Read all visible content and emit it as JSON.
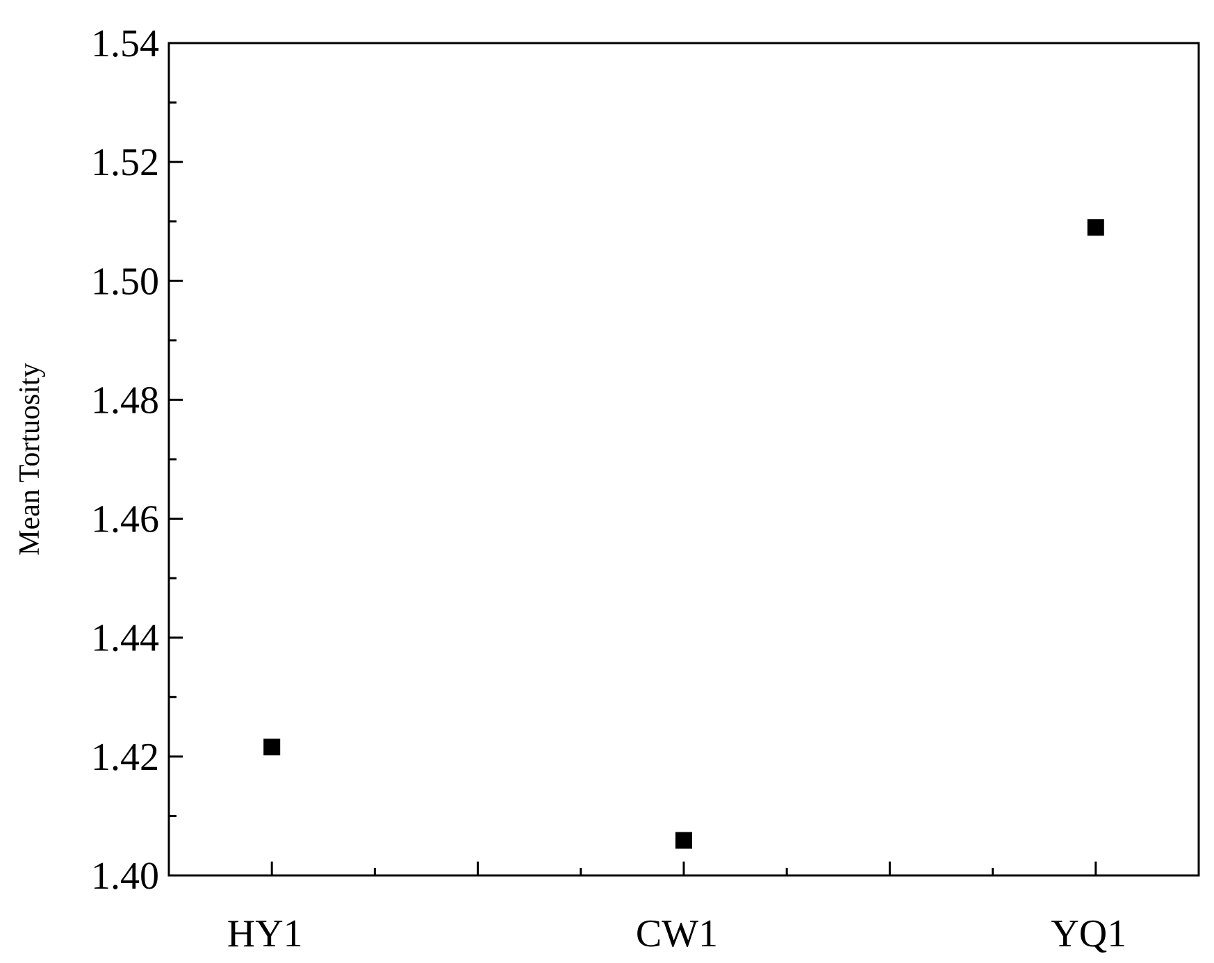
{
  "chart_data": {
    "type": "scatter",
    "y_label": "Mean Tortuosity",
    "categories": [
      "HY1",
      "CW1",
      "YQ1"
    ],
    "values": [
      1.4216,
      1.4059,
      1.509
    ],
    "color": "#000000",
    "ylim": [
      1.4,
      1.54
    ],
    "yticks": [
      {
        "value": 1.4,
        "label": "1.40"
      },
      {
        "value": 1.42,
        "label": "1.42"
      },
      {
        "value": 1.44,
        "label": "1.44"
      },
      {
        "value": 1.46,
        "label": "1.46"
      },
      {
        "value": 1.48,
        "label": "1.48"
      },
      {
        "value": 1.5,
        "label": "1.50"
      },
      {
        "value": 1.52,
        "label": "1.52"
      },
      {
        "value": 1.54,
        "label": "1.54"
      }
    ],
    "grid": false
  }
}
